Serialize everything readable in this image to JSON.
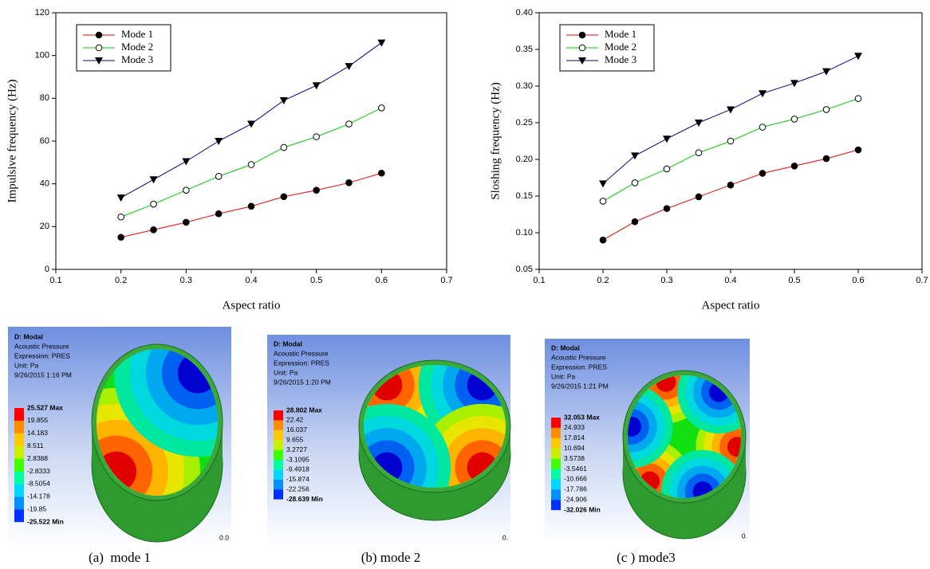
{
  "chart_data": [
    {
      "type": "line",
      "ylabel": "Impulsive frequency (Hz)",
      "xlabel": "Aspect ratio",
      "x": [
        0.2,
        0.25,
        0.3,
        0.35,
        0.4,
        0.45,
        0.5,
        0.55,
        0.6
      ],
      "series": [
        {
          "name": "Mode 1",
          "color": "#ff0000",
          "marker": "circle",
          "values": [
            15,
            18.5,
            22,
            26,
            29.5,
            34,
            37,
            40.5,
            45
          ]
        },
        {
          "name": "Mode 2",
          "color": "#00d000",
          "marker": "open-circle",
          "values": [
            24.5,
            30.5,
            37,
            43.5,
            49,
            57,
            62,
            68,
            75.5
          ]
        },
        {
          "name": "Mode 3",
          "color": "#00008b",
          "marker": "triangle-down",
          "values": [
            33.5,
            42,
            50.5,
            60,
            68,
            79,
            86,
            95,
            106
          ]
        }
      ],
      "xlim": [
        0.1,
        0.7
      ],
      "xticks": [
        0.1,
        0.2,
        0.3,
        0.4,
        0.5,
        0.6,
        0.7
      ],
      "ylim": [
        0,
        120
      ],
      "yticks": [
        0,
        20,
        40,
        60,
        80,
        100,
        120
      ],
      "legend": "upper left"
    },
    {
      "type": "line",
      "ylabel": "Sloshing frequency (Hz)",
      "xlabel": "Aspect ratio",
      "x": [
        0.2,
        0.25,
        0.3,
        0.35,
        0.4,
        0.45,
        0.5,
        0.55,
        0.6
      ],
      "series": [
        {
          "name": "Mode 1",
          "color": "#ff0000",
          "marker": "circle",
          "values": [
            0.09,
            0.115,
            0.133,
            0.149,
            0.165,
            0.181,
            0.191,
            0.201,
            0.213
          ]
        },
        {
          "name": "Mode 2",
          "color": "#00d000",
          "marker": "open-circle",
          "values": [
            0.143,
            0.168,
            0.187,
            0.209,
            0.225,
            0.244,
            0.255,
            0.268,
            0.283
          ]
        },
        {
          "name": "Mode 3",
          "color": "#00008b",
          "marker": "triangle-down",
          "values": [
            0.167,
            0.205,
            0.228,
            0.25,
            0.268,
            0.29,
            0.304,
            0.32,
            0.341
          ]
        }
      ],
      "xlim": [
        0.1,
        0.7
      ],
      "xticks": [
        0.1,
        0.2,
        0.3,
        0.4,
        0.5,
        0.6,
        0.7
      ],
      "ylim": [
        0.05,
        0.4
      ],
      "yticks": [
        0.05,
        {
          "value": 0.1,
          "label": "0.10"
        },
        0.15,
        {
          "value": 0.2,
          "label": "0.20"
        },
        0.25,
        {
          "value": 0.3,
          "label": "0.30"
        },
        0.35,
        {
          "value": 0.4,
          "label": "0.40"
        }
      ],
      "legend": "upper left"
    }
  ],
  "panels": [
    {
      "header": [
        "D: Modal",
        "Acoustic Pressure",
        "Expression: PRES",
        "Unit: Pa",
        "9/26/2015 1:16 PM"
      ],
      "legend": [
        "25.527 Max",
        "19.855",
        "14.183",
        "8.511",
        "2.8388",
        "-2.8333",
        "-8.5054",
        "-14.178",
        "-19.85",
        "-25.522 Min"
      ],
      "corner_text": "0.0",
      "caption": "(a)  mode 1"
    },
    {
      "header": [
        "D: Modal",
        "Acoustic Pressure",
        "Expression: PRES",
        "Unit: Pa",
        "9/26/2015 1:20 PM"
      ],
      "legend": [
        "28.802 Max",
        "22.42",
        "16.037",
        "9.655",
        "3.2727",
        "-3.1095",
        "-9.4918",
        "-15.874",
        "-22.256",
        "-28.639 Min"
      ],
      "corner_text": "0.",
      "caption": "(b) mode 2"
    },
    {
      "header": [
        "D: Modal",
        "Acoustic Pressure",
        "Expression: PRES",
        "Unit: Pa",
        "9/26/2015 1:21 PM"
      ],
      "legend": [
        "32.053 Max",
        "24.933",
        "17.814",
        "10.694",
        "3.5738",
        "-3.5461",
        "-10.666",
        "-17.786",
        "-24.906",
        "-32.026 Min"
      ],
      "corner_text": "0.",
      "caption": "(c ) mode3"
    }
  ]
}
